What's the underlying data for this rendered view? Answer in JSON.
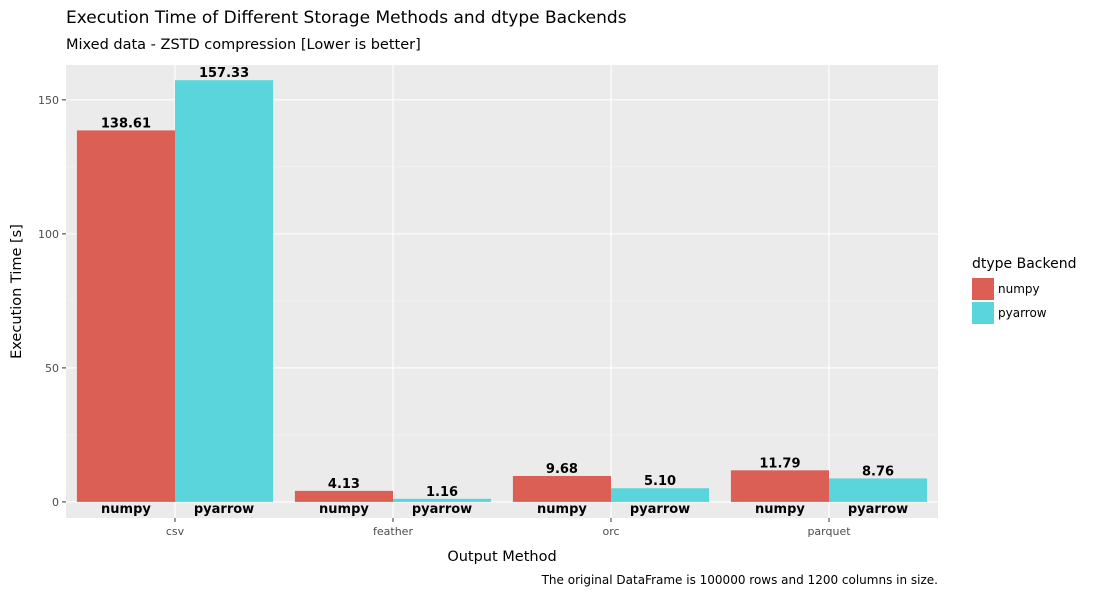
{
  "chart_data": {
    "type": "bar",
    "title": "Execution Time of Different Storage Methods and dtype Backends",
    "subtitle": "Mixed data - ZSTD compression [Lower is better]",
    "caption": "The original DataFrame is 100000 rows and 1200 columns in size.",
    "xlabel": "Output Method",
    "ylabel": "Execution Time [s]",
    "categories": [
      "csv",
      "feather",
      "orc",
      "parquet"
    ],
    "series": [
      {
        "name": "numpy",
        "color": "#dc5f56",
        "values": [
          138.61,
          4.13,
          9.68,
          11.79
        ],
        "labels": [
          "138.61",
          "4.13",
          "9.68",
          "11.79"
        ]
      },
      {
        "name": "pyarrow",
        "color": "#59d5db",
        "values": [
          157.33,
          1.16,
          5.1,
          8.76
        ],
        "labels": [
          "157.33",
          "1.16",
          "5.10",
          "8.76"
        ]
      }
    ],
    "yticks": [
      0,
      50,
      100,
      150
    ],
    "ylim": [
      -6,
      163
    ],
    "legend_title": "dtype Backend",
    "legend_position": "right",
    "grid": true,
    "panel_color": "#ebebeb"
  }
}
